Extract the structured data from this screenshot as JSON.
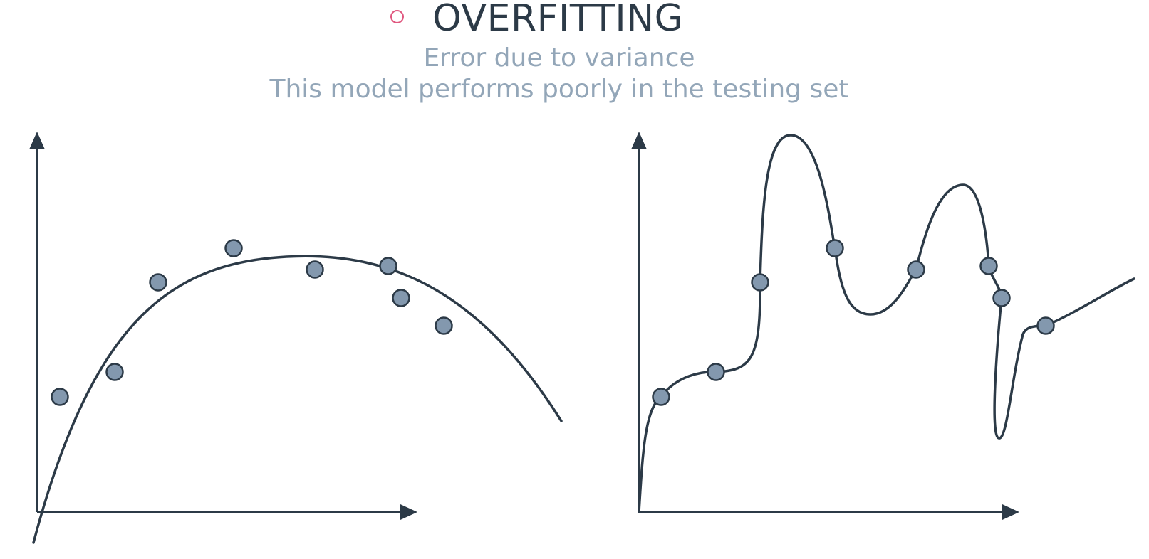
{
  "header": {
    "title": "OVERFITTING",
    "subtitle_line1": "Error due to variance",
    "subtitle_line2": "This model performs poorly in the testing set"
  },
  "colors": {
    "bullet": "#e0587f",
    "title": "#2c3a47",
    "subtitle": "#93a6b8",
    "ink": "#2c3a47",
    "point_fill": "#8398ae"
  },
  "icons": {
    "bullet": "hollow-circle-bullet-icon"
  }
}
